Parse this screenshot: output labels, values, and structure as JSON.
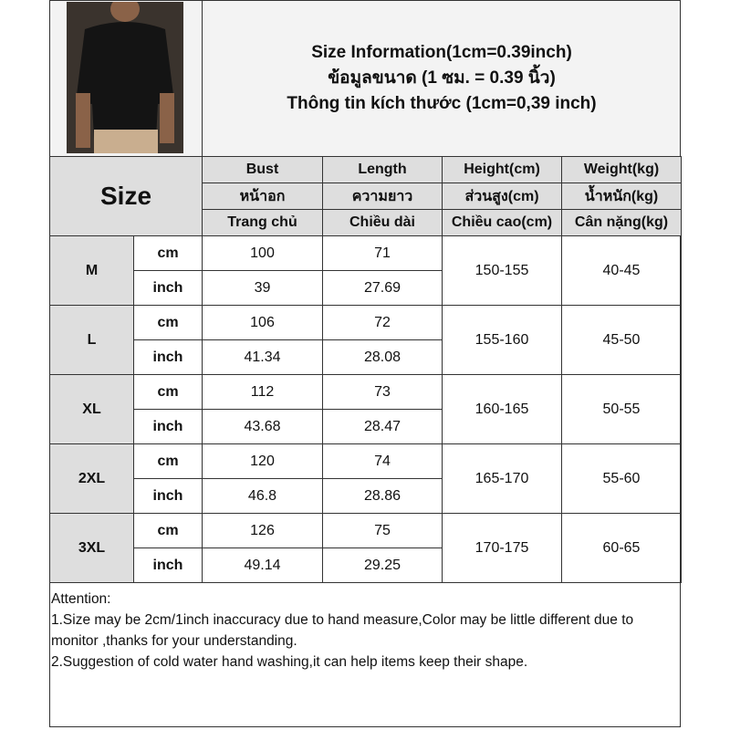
{
  "title": {
    "line1": "Size Information(1cm=0.39inch)",
    "line2": "ข้อมูลขนาด (1 ซม. = 0.39 นิ้ว)",
    "line3": "Thông tin kích thước (1cm=0,39 inch)"
  },
  "header": {
    "size": "Size",
    "columns": [
      {
        "en": "Bust",
        "th": "หน้าอก",
        "vi": "Trang chủ"
      },
      {
        "en": "Length",
        "th": "ความยาว",
        "vi": "Chiều dài"
      },
      {
        "en": "Height(cm)",
        "th": "ส่วนสูง(cm)",
        "vi": "Chiều cao(cm)"
      },
      {
        "en": "Weight(kg)",
        "th": "น้ำหนัก(kg)",
        "vi": "Cân nặng(kg)"
      }
    ]
  },
  "units": {
    "cm": "cm",
    "inch": "inch"
  },
  "rows": [
    {
      "size": "M",
      "bust_cm": "100",
      "length_cm": "71",
      "bust_in": "39",
      "length_in": "27.69",
      "height": "150-155",
      "weight": "40-45"
    },
    {
      "size": "L",
      "bust_cm": "106",
      "length_cm": "72",
      "bust_in": "41.34",
      "length_in": "28.08",
      "height": "155-160",
      "weight": "45-50"
    },
    {
      "size": "XL",
      "bust_cm": "112",
      "length_cm": "73",
      "bust_in": "43.68",
      "length_in": "28.47",
      "height": "160-165",
      "weight": "50-55"
    },
    {
      "size": "2XL",
      "bust_cm": "120",
      "length_cm": "74",
      "bust_in": "46.8",
      "length_in": "28.86",
      "height": "165-170",
      "weight": "55-60"
    },
    {
      "size": "3XL",
      "bust_cm": "126",
      "length_cm": "75",
      "bust_in": "49.14",
      "length_in": "29.25",
      "height": "170-175",
      "weight": "60-65"
    }
  ],
  "notes": {
    "heading": "Attention:",
    "line1": "1.Size may be 2cm/1inch inaccuracy due to hand measure,Color may be little different due to monitor ,thanks for your understanding.",
    "line2": "2.Suggestion of cold water hand washing,it can help items keep their shape."
  }
}
